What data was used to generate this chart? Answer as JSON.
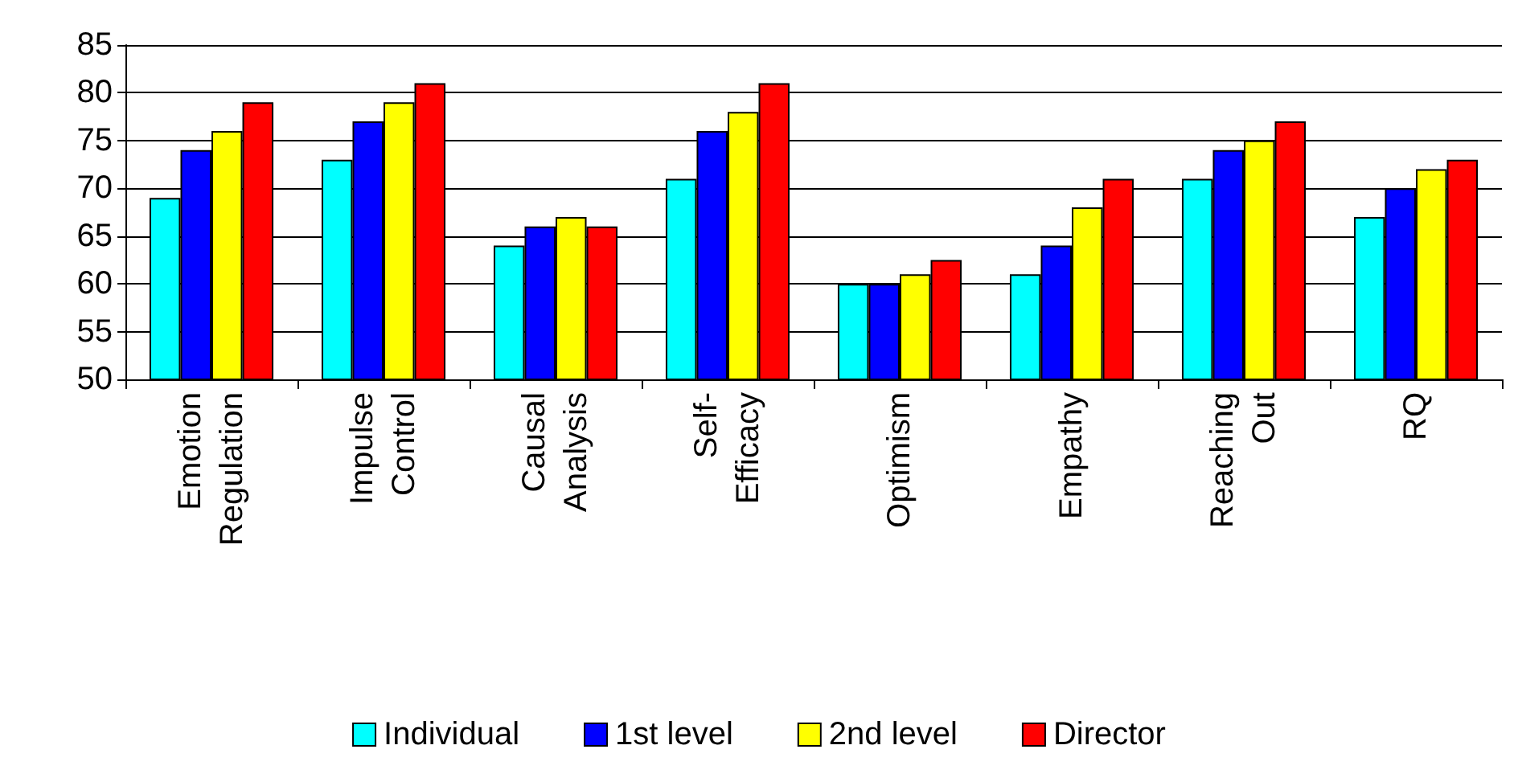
{
  "chart_data": {
    "type": "bar",
    "categories": [
      "Emotion Regulation",
      "Impulse Control",
      "Causal Analysis",
      "Self-Efficacy",
      "Optimism",
      "Empathy",
      "Reaching Out",
      "RQ"
    ],
    "series": [
      {
        "name": "Individual",
        "color": "#00ffff",
        "values": [
          69,
          73,
          64,
          71,
          60,
          61,
          71,
          67
        ]
      },
      {
        "name": "1st level",
        "color": "#0000ff",
        "values": [
          74,
          77,
          66,
          76,
          60,
          64,
          74,
          70
        ]
      },
      {
        "name": "2nd level",
        "color": "#ffff00",
        "values": [
          76,
          79,
          67,
          78,
          61,
          68,
          75,
          72
        ]
      },
      {
        "name": "Director",
        "color": "#ff0000",
        "values": [
          79,
          81,
          66,
          81,
          62.5,
          71,
          77,
          73
        ]
      }
    ],
    "ylim": [
      50,
      85
    ],
    "yticks": [
      50,
      55,
      60,
      65,
      70,
      75,
      80,
      85
    ],
    "grid": "y",
    "legend": "bottom"
  }
}
